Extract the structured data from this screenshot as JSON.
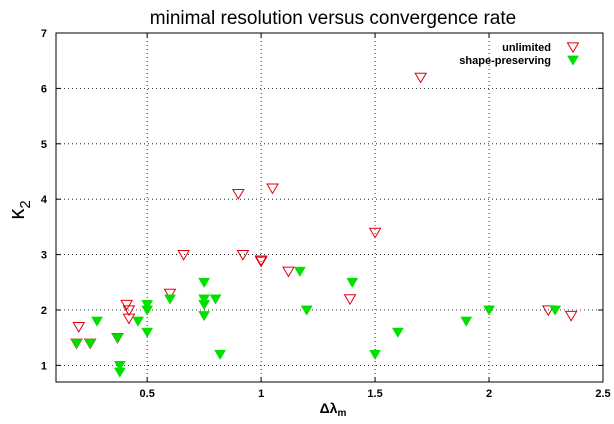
{
  "chart_data": {
    "type": "scatter",
    "title": "minimal resolution versus convergence rate",
    "xlabel": "Δλ",
    "xlabel_sub": "m",
    "ylabel": "κ",
    "ylabel_sub": "2",
    "xlim": [
      0.1,
      2.5
    ],
    "ylim": [
      0.7,
      7
    ],
    "xticks": [
      0.5,
      1,
      1.5,
      2,
      2.5
    ],
    "xtick_labels": [
      "0.5",
      "1",
      "1.5",
      "2",
      "2.5"
    ],
    "yticks": [
      1,
      2,
      3,
      4,
      5,
      6,
      7
    ],
    "ytick_labels": [
      "1",
      "2",
      "3",
      "4",
      "5",
      "6",
      "7"
    ],
    "grid": true,
    "legend_position": "top-right",
    "series": [
      {
        "name": "unlimited",
        "marker": "open-triangle-down",
        "color": "#e0000f",
        "points": [
          [
            0.2,
            1.7
          ],
          [
            0.19,
            1.4
          ],
          [
            0.25,
            1.4
          ],
          [
            0.37,
            1.5
          ],
          [
            0.41,
            2.1
          ],
          [
            0.42,
            2.0
          ],
          [
            0.42,
            1.85
          ],
          [
            0.6,
            2.3
          ],
          [
            0.66,
            3.0
          ],
          [
            0.9,
            4.1
          ],
          [
            0.92,
            3.0
          ],
          [
            1.0,
            2.9
          ],
          [
            1.0,
            2.88
          ],
          [
            1.05,
            4.2
          ],
          [
            1.12,
            2.7
          ],
          [
            1.39,
            2.2
          ],
          [
            1.5,
            3.4
          ],
          [
            1.7,
            6.2
          ],
          [
            2.26,
            2.0
          ],
          [
            2.36,
            1.9
          ]
        ]
      },
      {
        "name": "shape-preserving",
        "marker": "filled-triangle-down",
        "color": "#00e000",
        "points": [
          [
            0.19,
            1.4
          ],
          [
            0.25,
            1.4
          ],
          [
            0.28,
            1.8
          ],
          [
            0.37,
            1.5
          ],
          [
            0.38,
            1.0
          ],
          [
            0.38,
            0.88
          ],
          [
            0.46,
            1.8
          ],
          [
            0.5,
            2.1
          ],
          [
            0.5,
            2.0
          ],
          [
            0.5,
            1.6
          ],
          [
            0.6,
            2.2
          ],
          [
            0.75,
            2.5
          ],
          [
            0.75,
            2.2
          ],
          [
            0.75,
            2.1
          ],
          [
            0.75,
            1.9
          ],
          [
            0.8,
            2.2
          ],
          [
            0.82,
            1.2
          ],
          [
            1.17,
            2.7
          ],
          [
            1.2,
            2.0
          ],
          [
            1.4,
            2.5
          ],
          [
            1.5,
            1.2
          ],
          [
            1.6,
            1.6
          ],
          [
            1.9,
            1.8
          ],
          [
            2.0,
            2.0
          ],
          [
            2.29,
            2.0
          ]
        ]
      }
    ]
  }
}
